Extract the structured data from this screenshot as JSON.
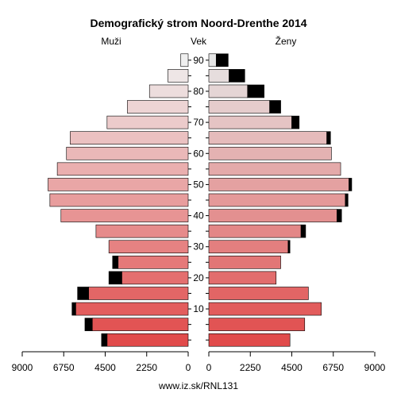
{
  "chart_data": {
    "type": "bar",
    "title": "Demografický strom Noord-Drenthe 2014",
    "left_label": "Muži",
    "center_label": "Vek",
    "right_label": "Ženy",
    "footer": "www.iz.sk/RNL131",
    "xlim": [
      0,
      9000
    ],
    "x_ticks": [
      9000,
      6750,
      4500,
      2250,
      0
    ],
    "x_tick_labels_left": [
      "9000",
      "6750",
      "4500",
      "2250",
      "0"
    ],
    "x_tick_labels_right": [
      "0",
      "2250",
      "4500",
      "6750",
      "9000"
    ],
    "age_ticks": [
      "10",
      "20",
      "30",
      "40",
      "50",
      "60",
      "70",
      "80",
      "90"
    ],
    "age_groups": [
      "0-4",
      "5-9",
      "10-14",
      "15-19",
      "20-24",
      "25-29",
      "30-34",
      "35-39",
      "40-44",
      "45-49",
      "50-54",
      "55-59",
      "60-64",
      "65-69",
      "70-74",
      "75-79",
      "80-84",
      "85-89",
      "90+"
    ],
    "series": [
      {
        "name": "Muži",
        "side": "left",
        "values": [
          4400,
          5200,
          6100,
          5400,
          3600,
          3800,
          4300,
          5000,
          6900,
          7500,
          7600,
          7100,
          6600,
          6400,
          4400,
          3300,
          2100,
          1100,
          400
        ],
        "excess": [
          300,
          400,
          200,
          600,
          700,
          300,
          0,
          0,
          0,
          0,
          0,
          0,
          0,
          0,
          0,
          0,
          0,
          0,
          0
        ]
      },
      {
        "name": "Ženy",
        "side": "right",
        "values": [
          4400,
          5200,
          6100,
          5400,
          3650,
          3900,
          4300,
          5000,
          6950,
          7400,
          7600,
          7150,
          6650,
          6400,
          4500,
          3300,
          2100,
          1100,
          400
        ],
        "excess": [
          0,
          0,
          0,
          0,
          0,
          0,
          100,
          250,
          250,
          150,
          150,
          0,
          0,
          200,
          400,
          600,
          900,
          850,
          650
        ]
      }
    ],
    "excess_color": "#000000"
  }
}
